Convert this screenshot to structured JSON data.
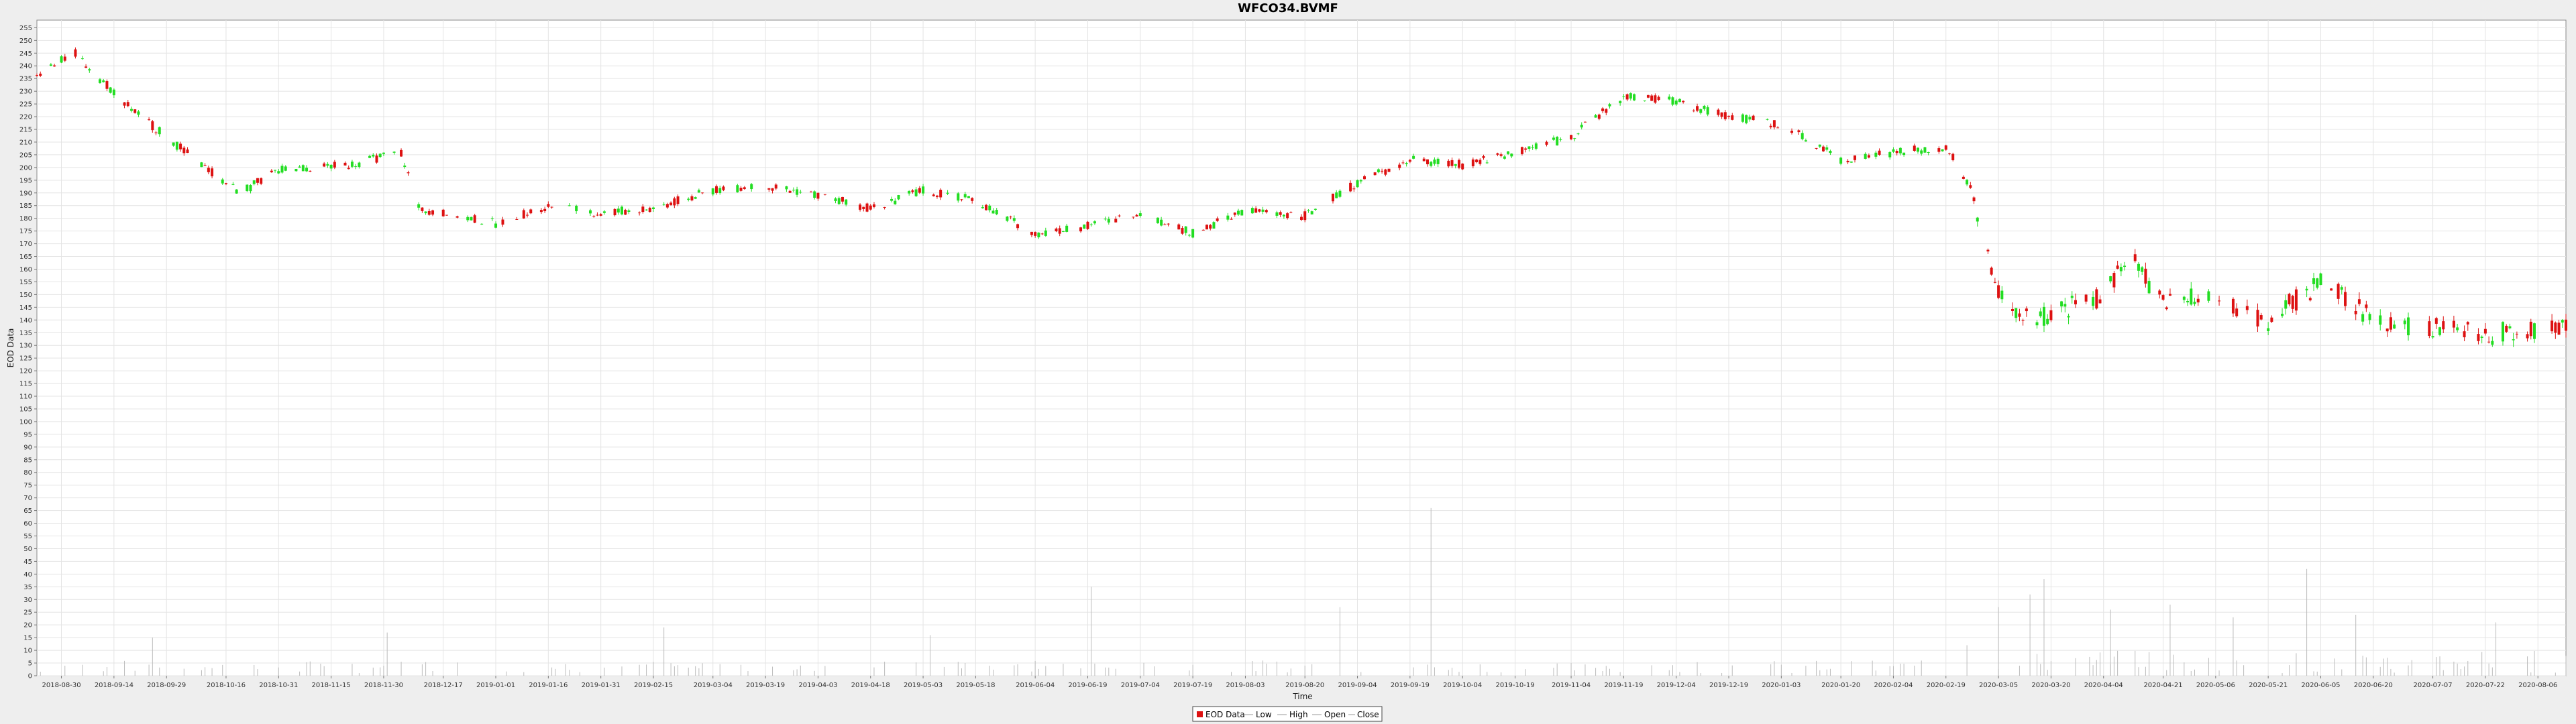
{
  "chart_data": {
    "type": "candlestick",
    "title": "WFCO34.BVMF",
    "xlabel": "Time",
    "ylabel": "EOD Data",
    "ylim": [
      0,
      258
    ],
    "xlim": [
      "2018-08-23",
      "2020-08-14"
    ],
    "y_ticks": [
      0,
      5,
      10,
      15,
      20,
      25,
      30,
      35,
      40,
      45,
      50,
      55,
      60,
      65,
      70,
      75,
      80,
      85,
      90,
      95,
      100,
      105,
      110,
      115,
      120,
      125,
      130,
      135,
      140,
      145,
      150,
      155,
      160,
      165,
      170,
      175,
      180,
      185,
      190,
      195,
      200,
      205,
      210,
      215,
      220,
      225,
      230,
      235,
      240,
      245,
      250,
      255
    ],
    "x_ticks": [
      "2018-08-30",
      "2018-09-14",
      "2018-09-29",
      "2018-10-16",
      "2018-10-31",
      "2018-11-15",
      "2018-11-30",
      "2018-12-17",
      "2019-01-01",
      "2019-01-16",
      "2019-01-31",
      "2019-02-15",
      "2019-03-04",
      "2019-03-19",
      "2019-04-03",
      "2019-04-18",
      "2019-05-03",
      "2019-05-18",
      "2019-06-04",
      "2019-06-19",
      "2019-07-04",
      "2019-07-19",
      "2019-08-03",
      "2019-08-20",
      "2019-09-04",
      "2019-09-19",
      "2019-10-04",
      "2019-10-19",
      "2019-11-04",
      "2019-11-19",
      "2019-12-04",
      "2019-12-19",
      "2020-01-03",
      "2020-01-20",
      "2020-02-04",
      "2020-02-19",
      "2020-03-05",
      "2020-03-20",
      "2020-04-04",
      "2020-04-21",
      "2020-05-06",
      "2020-05-21",
      "2020-06-05",
      "2020-06-20",
      "2020-07-07",
      "2020-07-22",
      "2020-08-06"
    ],
    "anchors": [
      [
        "2018-08-23",
        237
      ],
      [
        "2018-09-03",
        245
      ],
      [
        "2018-09-10",
        235
      ],
      [
        "2018-09-20",
        222
      ],
      [
        "2018-09-29",
        212
      ],
      [
        "2018-10-10",
        200
      ],
      [
        "2018-10-20",
        190
      ],
      [
        "2018-10-31",
        199
      ],
      [
        "2018-11-20",
        201
      ],
      [
        "2018-12-05",
        206
      ],
      [
        "2018-12-10",
        184
      ],
      [
        "2018-12-20",
        181
      ],
      [
        "2019-01-01",
        178
      ],
      [
        "2019-01-16",
        185
      ],
      [
        "2019-01-31",
        182
      ],
      [
        "2019-02-15",
        184
      ],
      [
        "2019-03-04",
        191
      ],
      [
        "2019-03-19",
        193
      ],
      [
        "2019-04-03",
        189
      ],
      [
        "2019-04-18",
        184
      ],
      [
        "2019-05-03",
        191
      ],
      [
        "2019-05-18",
        187
      ],
      [
        "2019-06-04",
        174
      ],
      [
        "2019-06-19",
        177
      ],
      [
        "2019-07-04",
        182
      ],
      [
        "2019-07-19",
        174
      ],
      [
        "2019-08-03",
        183
      ],
      [
        "2019-08-20",
        181
      ],
      [
        "2019-09-04",
        194
      ],
      [
        "2019-09-19",
        203
      ],
      [
        "2019-10-04",
        201
      ],
      [
        "2019-10-19",
        206
      ],
      [
        "2019-11-04",
        212
      ],
      [
        "2019-11-19",
        228
      ],
      [
        "2019-12-04",
        226
      ],
      [
        "2019-12-19",
        220
      ],
      [
        "2020-01-03",
        217
      ],
      [
        "2020-01-20",
        203
      ],
      [
        "2020-02-04",
        206
      ],
      [
        "2020-02-19",
        208
      ],
      [
        "2020-02-25",
        195
      ],
      [
        "2020-03-05",
        150
      ],
      [
        "2020-03-12",
        140
      ],
      [
        "2020-03-20",
        142
      ],
      [
        "2020-04-04",
        150
      ],
      [
        "2020-04-11",
        165
      ],
      [
        "2020-04-21",
        148
      ],
      [
        "2020-05-06",
        148
      ],
      [
        "2020-05-21",
        140
      ],
      [
        "2020-06-05",
        155
      ],
      [
        "2020-06-20",
        140
      ],
      [
        "2020-07-07",
        137
      ],
      [
        "2020-07-22",
        134
      ],
      [
        "2020-08-14",
        138
      ]
    ],
    "volume_spikes": [
      [
        "2018-09-25",
        15
      ],
      [
        "2018-12-01",
        17
      ],
      [
        "2019-02-18",
        19
      ],
      [
        "2019-05-05",
        16
      ],
      [
        "2019-06-20",
        35
      ],
      [
        "2019-08-30",
        27
      ],
      [
        "2019-09-25",
        66
      ],
      [
        "2020-02-25",
        12
      ],
      [
        "2020-03-05",
        27
      ],
      [
        "2020-03-14",
        32
      ],
      [
        "2020-03-18",
        38
      ],
      [
        "2020-04-06",
        26
      ],
      [
        "2020-04-23",
        28
      ],
      [
        "2020-05-11",
        23
      ],
      [
        "2020-06-01",
        42
      ],
      [
        "2020-06-15",
        24
      ],
      [
        "2020-07-25",
        21
      ]
    ],
    "legend": {
      "placement": "bottom-center",
      "items": [
        "EOD Data",
        "Low",
        "High",
        "Open",
        "Close"
      ]
    },
    "colors": {
      "up": "#22dd22",
      "down": "#dd1111",
      "volume": "#bbbbbb",
      "grid": "#e4e4e4",
      "plot_bg": "#ffffff",
      "page_bg": "#eeeeee"
    },
    "grid": true
  }
}
